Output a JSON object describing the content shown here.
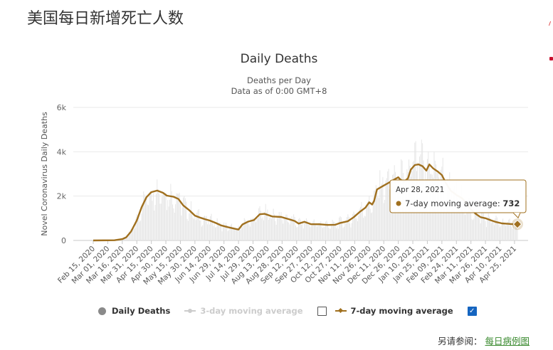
{
  "page": {
    "title": "美国每日新增死亡人数",
    "footer_label": "另请参阅：",
    "footer_link": "每日病例图"
  },
  "chart_data": {
    "type": "bar",
    "title": "Daily Deaths",
    "subtitle_lines": [
      "Deaths per Day",
      "Data as of 0:00 GMT+8"
    ],
    "ylabel": "Novel Coronavirus Daily Deaths",
    "ylim": [
      0,
      6000
    ],
    "yticks": [
      0,
      2000,
      4000,
      6000
    ],
    "ytick_labels": [
      "0",
      "2k",
      "4k",
      "6k"
    ],
    "x_start": "2020-02-15",
    "x_end": "2021-04-28",
    "xtick_labels": [
      "Feb 15, 2020",
      "Mar 01, 2020",
      "Mar 16, 2020",
      "Mar 31, 2020",
      "Apr 15, 2020",
      "Apr 30, 2020",
      "May 15, 2020",
      "May 30, 2020",
      "Jun 14, 2020",
      "Jun 29, 2020",
      "Jul 14, 2020",
      "Jul 29, 2020",
      "Aug 13, 2020",
      "Aug 28, 2020",
      "Sep 12, 2020",
      "Sep 27, 2020",
      "Oct 12, 2020",
      "Oct 27, 2020",
      "Nov 11, 2020",
      "Nov 26, 2020",
      "Dec 11, 2020",
      "Dec 26, 2020",
      "Jan 10, 2021",
      "Jan 25, 2021",
      "Feb 09, 2021",
      "Feb 24, 2021",
      "Mar 11, 2021",
      "Mar 26, 2021",
      "Apr 10, 2021",
      "Apr 25, 2021"
    ],
    "grid": true,
    "legend_position": "bottom",
    "series": [
      {
        "name": "Daily Deaths",
        "kind": "bar",
        "color": "#e6e6e6",
        "visible": true,
        "noise_amplitude": 0.22
      },
      {
        "name": "3-day moving average",
        "kind": "line",
        "color": "#cccccc",
        "visible": false
      },
      {
        "name": "7-day moving average",
        "kind": "line",
        "color": "#a0701f",
        "visible": true,
        "points": [
          [
            "2020-02-15",
            0
          ],
          [
            "2020-03-08",
            10
          ],
          [
            "2020-03-16",
            60
          ],
          [
            "2020-03-20",
            140
          ],
          [
            "2020-03-25",
            400
          ],
          [
            "2020-03-31",
            900
          ],
          [
            "2020-04-05",
            1500
          ],
          [
            "2020-04-10",
            1950
          ],
          [
            "2020-04-15",
            2180
          ],
          [
            "2020-04-21",
            2250
          ],
          [
            "2020-04-27",
            2150
          ],
          [
            "2020-05-01",
            2020
          ],
          [
            "2020-05-08",
            1970
          ],
          [
            "2020-05-13",
            1870
          ],
          [
            "2020-05-18",
            1580
          ],
          [
            "2020-05-24",
            1370
          ],
          [
            "2020-05-30",
            1120
          ],
          [
            "2020-06-05",
            1020
          ],
          [
            "2020-06-10",
            950
          ],
          [
            "2020-06-14",
            900
          ],
          [
            "2020-06-20",
            800
          ],
          [
            "2020-06-26",
            680
          ],
          [
            "2020-07-03",
            600
          ],
          [
            "2020-07-09",
            540
          ],
          [
            "2020-07-14",
            490
          ],
          [
            "2020-07-18",
            720
          ],
          [
            "2020-07-24",
            850
          ],
          [
            "2020-07-30",
            920
          ],
          [
            "2020-08-05",
            1180
          ],
          [
            "2020-08-10",
            1200
          ],
          [
            "2020-08-18",
            1080
          ],
          [
            "2020-08-27",
            1060
          ],
          [
            "2020-09-04",
            960
          ],
          [
            "2020-09-10",
            880
          ],
          [
            "2020-09-14",
            760
          ],
          [
            "2020-09-20",
            840
          ],
          [
            "2020-09-27",
            730
          ],
          [
            "2020-10-05",
            730
          ],
          [
            "2020-10-14",
            700
          ],
          [
            "2020-10-22",
            710
          ],
          [
            "2020-10-27",
            790
          ],
          [
            "2020-11-04",
            870
          ],
          [
            "2020-11-10",
            1050
          ],
          [
            "2020-11-16",
            1280
          ],
          [
            "2020-11-22",
            1480
          ],
          [
            "2020-11-26",
            1720
          ],
          [
            "2020-11-29",
            1620
          ],
          [
            "2020-12-01",
            1780
          ],
          [
            "2020-12-04",
            2300
          ],
          [
            "2020-12-10",
            2450
          ],
          [
            "2020-12-16",
            2600
          ],
          [
            "2020-12-20",
            2700
          ],
          [
            "2020-12-26",
            2850
          ],
          [
            "2020-12-28",
            2750
          ],
          [
            "2021-01-01",
            2650
          ],
          [
            "2021-01-05",
            2800
          ],
          [
            "2021-01-08",
            3200
          ],
          [
            "2021-01-12",
            3400
          ],
          [
            "2021-01-16",
            3430
          ],
          [
            "2021-01-20",
            3350
          ],
          [
            "2021-01-24",
            3150
          ],
          [
            "2021-01-27",
            3430
          ],
          [
            "2021-01-31",
            3250
          ],
          [
            "2021-02-05",
            3100
          ],
          [
            "2021-02-09",
            2950
          ],
          [
            "2021-02-13",
            2600
          ],
          [
            "2021-02-18",
            2250
          ],
          [
            "2021-02-24",
            2050
          ],
          [
            "2021-03-02",
            1900
          ],
          [
            "2021-03-07",
            1650
          ],
          [
            "2021-03-11",
            1400
          ],
          [
            "2021-03-16",
            1200
          ],
          [
            "2021-03-21",
            1050
          ],
          [
            "2021-03-26",
            1000
          ],
          [
            "2021-04-01",
            900
          ],
          [
            "2021-04-06",
            830
          ],
          [
            "2021-04-12",
            770
          ],
          [
            "2021-04-18",
            750
          ],
          [
            "2021-04-24",
            730
          ],
          [
            "2021-04-28",
            732
          ]
        ]
      }
    ],
    "tooltip": {
      "date": "Apr 28, 2021",
      "series": "7-day moving average",
      "value": 732
    }
  }
}
